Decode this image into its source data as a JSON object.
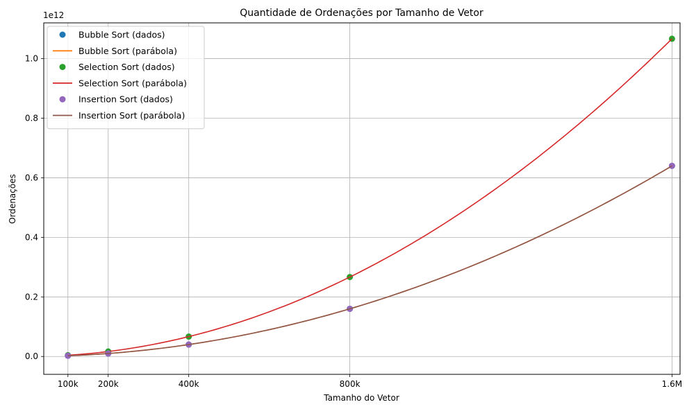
{
  "chart_data": {
    "type": "line",
    "title": "Quantidade de Ordenações por Tamanho de Vetor",
    "xlabel": "Tamanho do Vetor",
    "ylabel": "Ordenações",
    "y_multiplier_label": "1e12",
    "xlim": [
      0.04,
      1.62
    ],
    "ylim": [
      -0.06,
      1.12
    ],
    "x_ticks": [
      {
        "value": 0.1,
        "label": "100k"
      },
      {
        "value": 0.2,
        "label": "200k"
      },
      {
        "value": 0.4,
        "label": "400k"
      },
      {
        "value": 0.8,
        "label": "800k"
      },
      {
        "value": 1.6,
        "label": "1.6M"
      }
    ],
    "y_ticks": [
      {
        "value": 0.0,
        "label": "0.0"
      },
      {
        "value": 0.2,
        "label": "0.2"
      },
      {
        "value": 0.4,
        "label": "0.4"
      },
      {
        "value": 0.6,
        "label": "0.6"
      },
      {
        "value": 0.8,
        "label": "0.8"
      },
      {
        "value": 1.0,
        "label": "1.0"
      }
    ],
    "x_unit_note": "x values in millions; y values in units of 1e12",
    "grid": true,
    "legend_position": "top-left",
    "series": [
      {
        "name": "Bubble Sort (dados)",
        "kind": "points",
        "color": "#1f77b4",
        "x": [
          0.1,
          0.2,
          0.4,
          0.8,
          1.6
        ],
        "y": [
          0.0025,
          0.01,
          0.04,
          0.16,
          0.64
        ]
      },
      {
        "name": "Bubble Sort (parábola)",
        "kind": "curve",
        "color": "#ff7f0e",
        "coef": 0.25
      },
      {
        "name": "Selection Sort (dados)",
        "kind": "points",
        "color": "#2ca02c",
        "x": [
          0.1,
          0.2,
          0.4,
          0.8,
          1.6
        ],
        "y": [
          0.0042,
          0.0167,
          0.0667,
          0.2667,
          1.0667
        ]
      },
      {
        "name": "Selection Sort (parábola)",
        "kind": "curve",
        "color": "#d62728",
        "coef": 0.4167
      },
      {
        "name": "Insertion Sort (dados)",
        "kind": "points",
        "color": "#9467bd",
        "x": [
          0.1,
          0.2,
          0.4,
          0.8,
          1.6
        ],
        "y": [
          0.0025,
          0.01,
          0.04,
          0.16,
          0.64
        ]
      },
      {
        "name": "Insertion Sort (parábola)",
        "kind": "curve",
        "color": "#8c564b",
        "coef": 0.25
      }
    ]
  }
}
